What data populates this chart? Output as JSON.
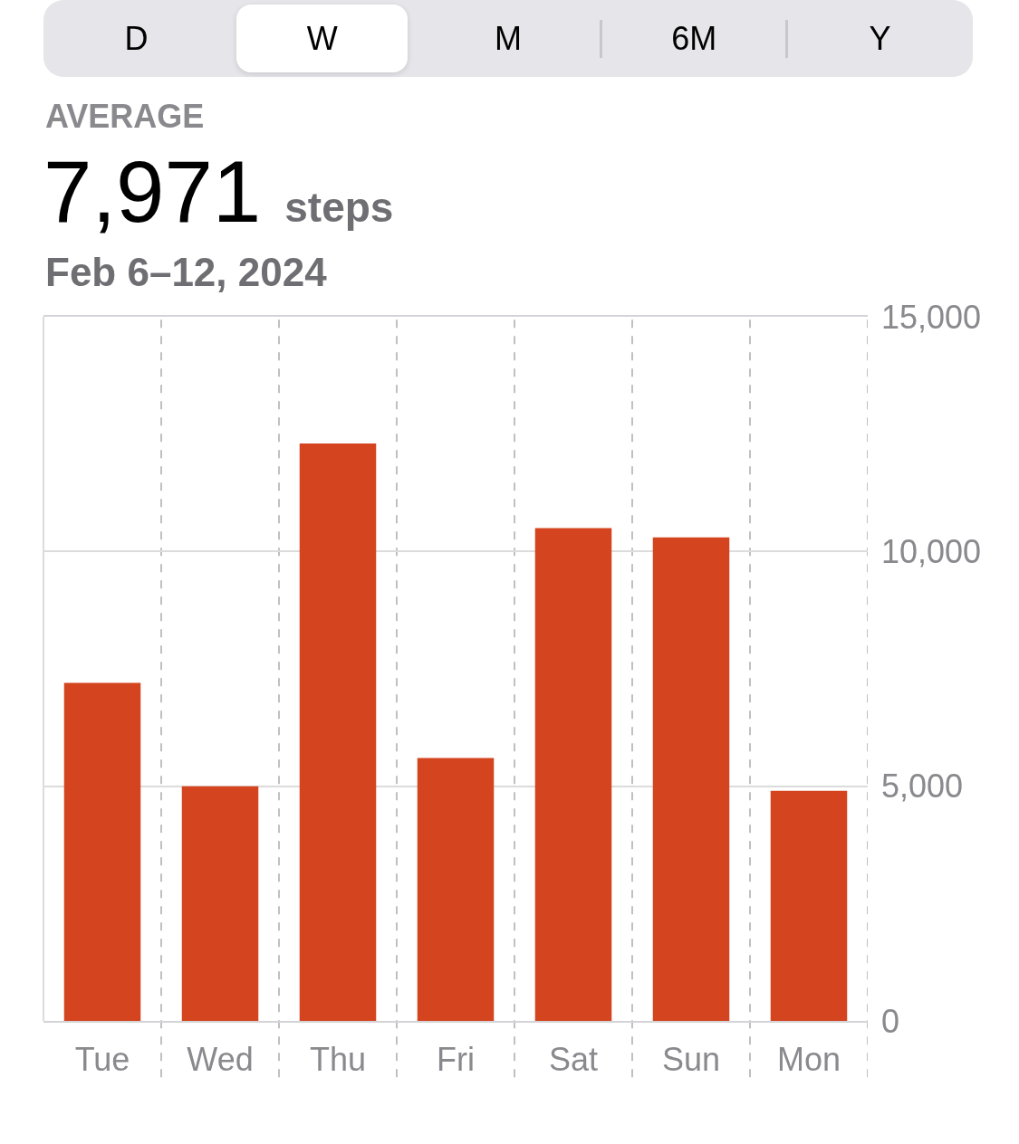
{
  "chart_data": {
    "type": "bar",
    "title": "7,971 steps",
    "subtitle": "Feb 6–12, 2024",
    "annotations": [
      "D",
      "W",
      "M",
      "6M",
      "Y",
      "AVERAGE"
    ],
    "categories": [
      "Tue",
      "Wed",
      "Thu",
      "Fri",
      "Sat",
      "Sun",
      "Mon"
    ],
    "values": [
      7200,
      5000,
      12300,
      5600,
      10500,
      10300,
      4900
    ],
    "color": "#d4441f",
    "ylim": [
      0,
      15000
    ],
    "yticks": [
      0,
      {
        "value": 5000,
        "label": "5,000"
      },
      {
        "value": 10000,
        "label": "10,000"
      },
      {
        "value": 15000,
        "label": "15,000"
      }
    ],
    "grid": true
  }
}
